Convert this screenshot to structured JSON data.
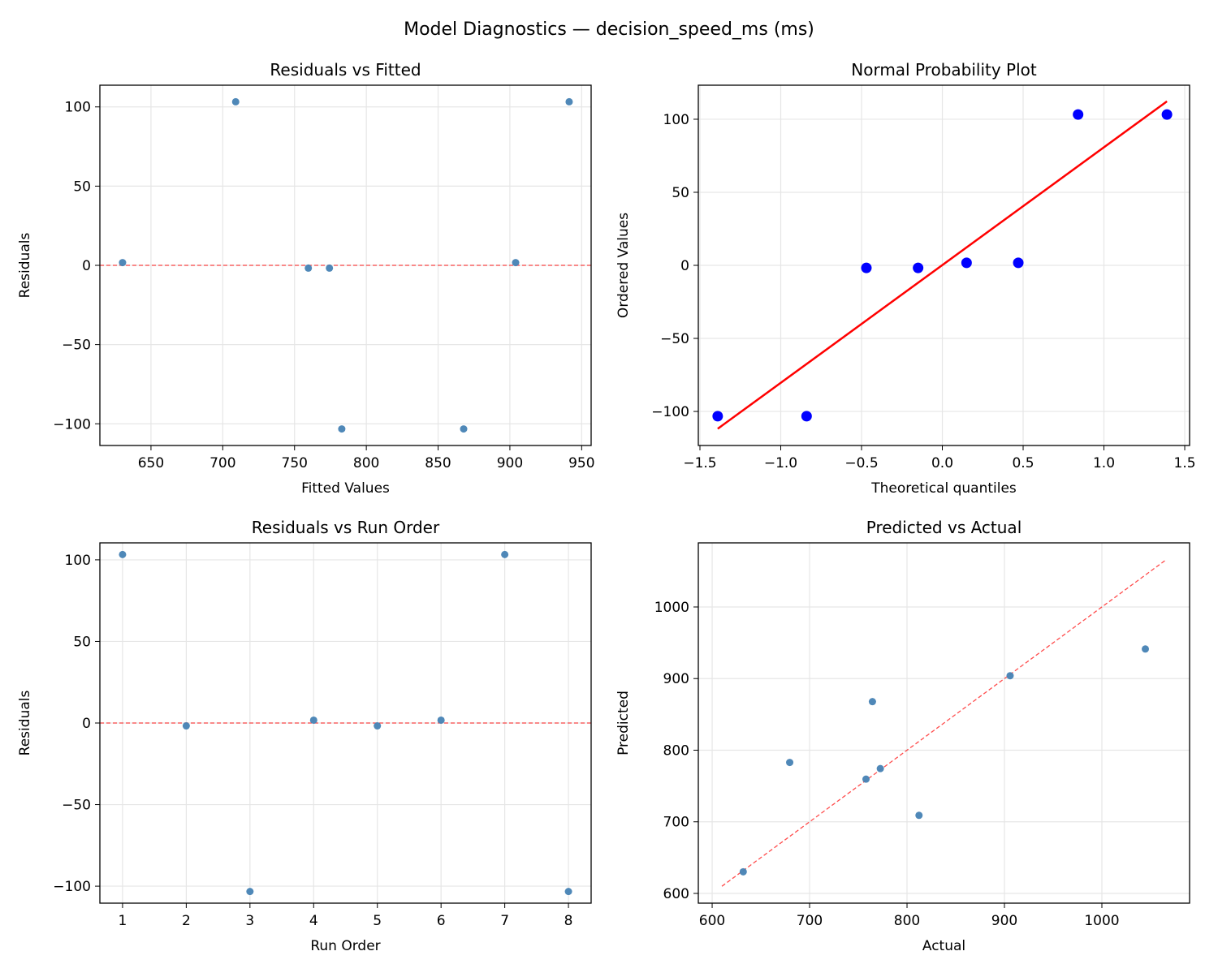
{
  "suptitle": "Model Diagnostics — decision_speed_ms (ms)",
  "colors": {
    "points": "#4682b4",
    "prob_points": "#0000ff",
    "ref_line": "#ff0000",
    "grid": "#e6e6e6"
  },
  "chart_data": [
    {
      "type": "scatter",
      "title": "Residuals vs Fitted",
      "xlabel": "Fitted Values",
      "ylabel": "Residuals",
      "xlim": [
        614.4,
        956.6
      ],
      "ylim": [
        -113.7,
        113.7
      ],
      "xticks": [
        650,
        700,
        750,
        800,
        850,
        900,
        950
      ],
      "yticks": [
        -100,
        -50,
        0,
        50,
        100
      ],
      "grid": true,
      "x": [
        630.2,
        709.0,
        759.6,
        774.3,
        782.9,
        867.8,
        904.0,
        941.3
      ],
      "y": [
        1.75,
        103.25,
        -1.75,
        -1.75,
        -103.25,
        -103.25,
        1.75,
        103.25
      ],
      "hline": 0
    },
    {
      "type": "scatter",
      "title": "Normal Probability Plot",
      "xlabel": "Theoretical quantiles",
      "ylabel": "Ordered Values",
      "xlim": [
        -1.51,
        1.53
      ],
      "ylim": [
        -123.3,
        123.3
      ],
      "xticks": [
        -1.5,
        -1.0,
        -0.5,
        0.0,
        0.5,
        1.0,
        1.5
      ],
      "yticks": [
        -100,
        -50,
        0,
        50,
        100
      ],
      "grid": true,
      "x": [
        -1.39,
        -0.84,
        -0.47,
        -0.15,
        0.15,
        0.47,
        0.84,
        1.39
      ],
      "y": [
        -103.25,
        -103.25,
        -1.75,
        -1.75,
        1.75,
        1.75,
        103.25,
        103.25
      ],
      "fit_line": {
        "slope": 80.6,
        "intercept": 0.2
      }
    },
    {
      "type": "scatter",
      "title": "Residuals vs Run Order",
      "xlabel": "Run Order",
      "ylabel": "Residuals",
      "xlim": [
        0.644,
        8.356
      ],
      "ylim": [
        -110.4,
        110.4
      ],
      "xticks": [
        1,
        2,
        3,
        4,
        5,
        6,
        7,
        8
      ],
      "yticks": [
        -100,
        -50,
        0,
        50,
        100
      ],
      "grid": true,
      "x": [
        1,
        2,
        3,
        4,
        5,
        6,
        7,
        8
      ],
      "y": [
        103.25,
        -1.75,
        -103.25,
        1.75,
        -1.75,
        1.75,
        103.25,
        -103.25
      ],
      "hline": 0
    },
    {
      "type": "scatter",
      "title": "Predicted vs Actual",
      "xlabel": "Actual",
      "ylabel": "Predicted",
      "xlim": [
        585.8,
        1090
      ],
      "ylim": [
        586.4,
        1089.5
      ],
      "xticks": [
        600,
        700,
        800,
        900,
        1000
      ],
      "yticks": [
        600,
        700,
        800,
        900,
        1000
      ],
      "grid": true,
      "x": [
        631.9,
        812.3,
        757.9,
        772.6,
        679.6,
        764.5,
        905.8,
        1044.6
      ],
      "y": [
        630.2,
        709.0,
        759.6,
        774.3,
        782.9,
        867.8,
        904.0,
        941.3
      ],
      "diag_line": [
        610,
        1066
      ]
    }
  ]
}
